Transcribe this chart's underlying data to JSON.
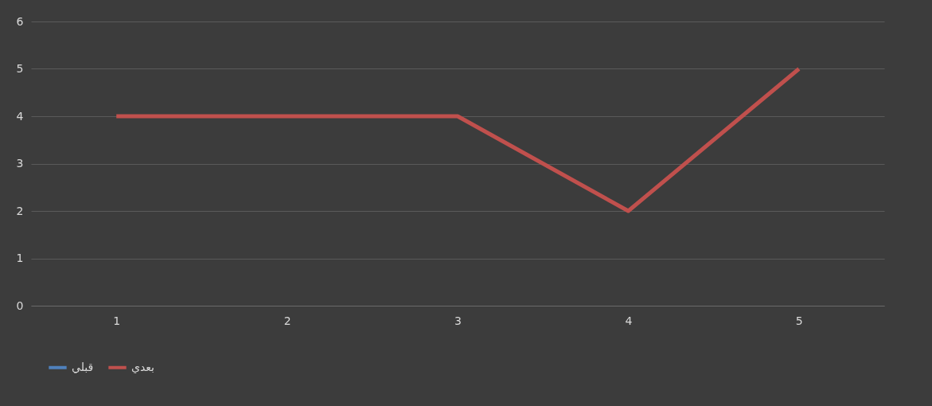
{
  "chart_data": {
    "type": "line",
    "categories": [
      "1",
      "2",
      "3",
      "4",
      "5"
    ],
    "series": [
      {
        "name": "قبلي",
        "color": "#4f81bd",
        "values": [
          null,
          null,
          null,
          null,
          null
        ]
      },
      {
        "name": "بعدي",
        "color": "#c0504d",
        "values": [
          4,
          4,
          4,
          2,
          5
        ]
      }
    ],
    "ylim": [
      0,
      6
    ],
    "yticks": [
      0,
      1,
      2,
      3,
      4,
      5,
      6
    ],
    "grid": "y",
    "legend": "bottom",
    "marker": "none",
    "line_style": "solid"
  }
}
